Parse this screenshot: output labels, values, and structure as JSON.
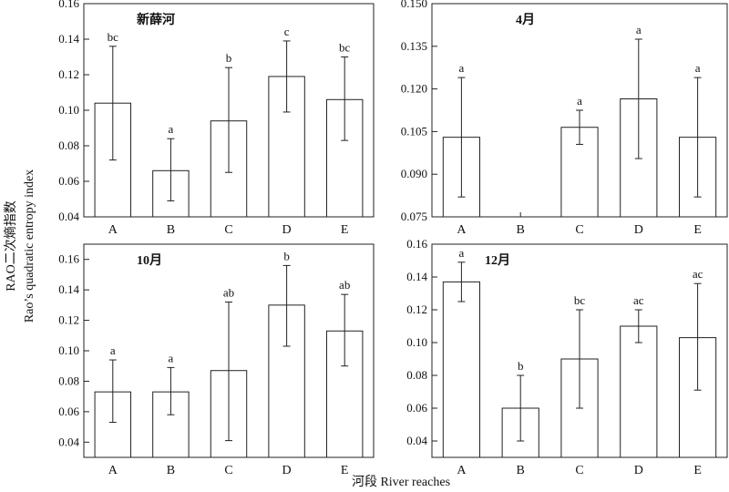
{
  "figure": {
    "xlabel": "河段 River reaches",
    "ylabel_line1": "RAO二次熵指数",
    "ylabel_line2": "Rao’s quadratic entropy index"
  },
  "chart_data": [
    {
      "type": "bar",
      "title": "新薛河",
      "categories": [
        "A",
        "B",
        "C",
        "D",
        "E"
      ],
      "values": [
        0.104,
        0.066,
        0.094,
        0.119,
        0.106
      ],
      "error_high": [
        0.136,
        0.084,
        0.124,
        0.139,
        0.13
      ],
      "error_low": [
        0.072,
        0.049,
        0.065,
        0.099,
        0.083
      ],
      "significance": [
        "bc",
        "a",
        "b",
        "c",
        "bc"
      ],
      "ylim": [
        0.04,
        0.16
      ],
      "yticks": [
        "0.04",
        "0.06",
        "0.08",
        "0.10",
        "0.12",
        "0.14",
        "0.16"
      ]
    },
    {
      "type": "bar",
      "title": "4月",
      "categories": [
        "A",
        "B",
        "C",
        "D",
        "E"
      ],
      "values": [
        0.103,
        null,
        0.1065,
        0.1165,
        0.103
      ],
      "error_high": [
        0.124,
        null,
        0.1125,
        0.1375,
        0.124
      ],
      "error_low": [
        0.082,
        null,
        0.1005,
        0.0955,
        0.082
      ],
      "significance": [
        "a",
        "",
        "a",
        "a",
        "a"
      ],
      "ylim": [
        0.075,
        0.15
      ],
      "yticks": [
        "0.075",
        "0.090",
        "0.105",
        "0.120",
        "0.135",
        "0.150"
      ]
    },
    {
      "type": "bar",
      "title": "10月",
      "categories": [
        "A",
        "B",
        "C",
        "D",
        "E"
      ],
      "values": [
        0.073,
        0.073,
        0.087,
        0.13,
        0.113
      ],
      "error_high": [
        0.094,
        0.089,
        0.132,
        0.156,
        0.137
      ],
      "error_low": [
        0.053,
        0.058,
        0.041,
        0.103,
        0.09
      ],
      "significance": [
        "a",
        "a",
        "ab",
        "b",
        "ab"
      ],
      "ylim": [
        0.03,
        0.17
      ],
      "yticks": [
        "0.04",
        "0.06",
        "0.08",
        "0.10",
        "0.12",
        "0.14",
        "0.16"
      ]
    },
    {
      "type": "bar",
      "title": "12月",
      "categories": [
        "A",
        "B",
        "C",
        "D",
        "E"
      ],
      "values": [
        0.137,
        0.06,
        0.09,
        0.11,
        0.103
      ],
      "error_high": [
        0.149,
        0.08,
        0.12,
        0.12,
        0.136
      ],
      "error_low": [
        0.125,
        0.04,
        0.06,
        0.1,
        0.071
      ],
      "significance": [
        "a",
        "b",
        "bc",
        "ac",
        "ac"
      ],
      "ylim": [
        0.03,
        0.16
      ],
      "yticks": [
        "0.04",
        "0.06",
        "0.08",
        "0.10",
        "0.12",
        "0.14",
        "0.16"
      ]
    }
  ]
}
